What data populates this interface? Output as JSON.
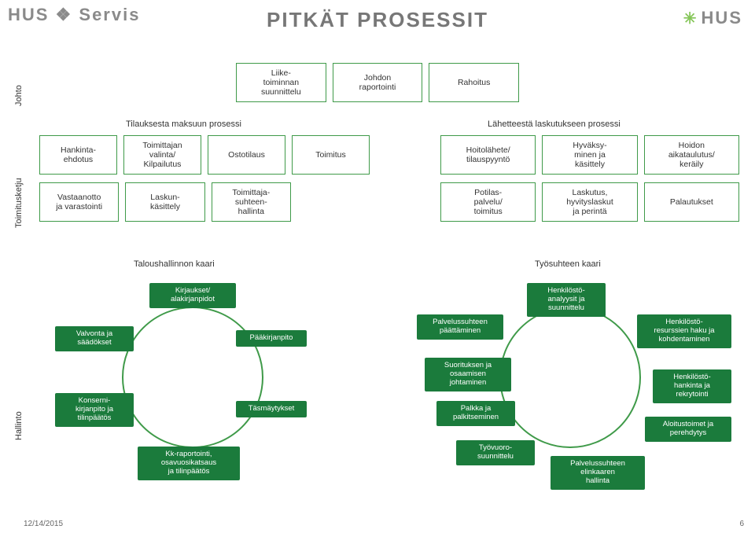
{
  "title": "PITKÄT PROSESSIT",
  "logos": {
    "left": "HUS ❖ Servis",
    "right_spark": "✳",
    "right": "HUS"
  },
  "vlabels": {
    "johto": "Johto",
    "toimitusketju": "Toimitusketju",
    "hallinto": "Hallinto"
  },
  "row_johto": [
    "Liike-\ntoiminnan\nsuunnittelu",
    "Johdon\nraportointi",
    "Rahoitus"
  ],
  "labels": {
    "tilauksesta": "Tilauksesta maksuun prosessi",
    "lahetteesta": "Lähetteestä laskutukseen prosessi"
  },
  "row2_left": [
    "Hankinta-\nehdotus",
    "Toimittajan\nvalinta/\nKilpailutus",
    "Ostotilaus",
    "Toimitus"
  ],
  "row2_right": [
    "Hoitolähete/\ntilauspyyntö",
    "Hyväksy-\nminen ja\nkäsittely",
    "Hoidon\naikataulutus/\nkeräily"
  ],
  "row3_left": [
    "Vastaanotto\nja varastointi",
    "Laskun-\nkäsittely",
    "Toimittaja-\nsuhteen-\nhallinta"
  ],
  "row3_right": [
    "Potilas-\npalvelu/\ntoimitus",
    "Laskutus,\nhyvityslaskut\nja perintä",
    "Palautukset"
  ],
  "arch_titles": {
    "left": "Taloushallinnon kaari",
    "right": "Työsuhteen kaari"
  },
  "left_circle_nodes": {
    "top": "Kirjaukset/\nalakirjanpidot",
    "right": "Pääkirjanpito",
    "bottomright": "Täsmäytykset",
    "bottom": "Kk-raportointi,\nosavuosikatsaus\nja tilinpäätös",
    "bottomleft": "Konserni-\nkirjanpito ja\ntilinpäätös",
    "left": "Valvonta ja\nsäädökset"
  },
  "right_circle_nodes": {
    "topleft": "Palvelussuhteen\npäättäminen",
    "top": "Henkilöstö-\nanalyysit ja\nsuunnittelu",
    "topright": "Henkilöstö-\nresurssien haku ja\nkohdentaminen",
    "right": "Henkilöstö-\nhankinta ja\nrekrytointi",
    "bottomright": "Aloitustoimet ja\nperehdytys",
    "bottom": "Palvelussuhteen\nelinkaaren\nhallinta",
    "bottomleft": "Työvuoro-\nsuunnittelu",
    "left": "Palkka ja\npalkitseminen",
    "farleft": "Suorituksen ja\nosaamisen\njohtaminen"
  },
  "footer": {
    "date": "12/14/2015",
    "page": "6"
  },
  "colors": {
    "box_border": "#3f9a49",
    "node_bg": "#1b7b3c",
    "node_text": "#ffffff",
    "title_color": "#777777"
  }
}
